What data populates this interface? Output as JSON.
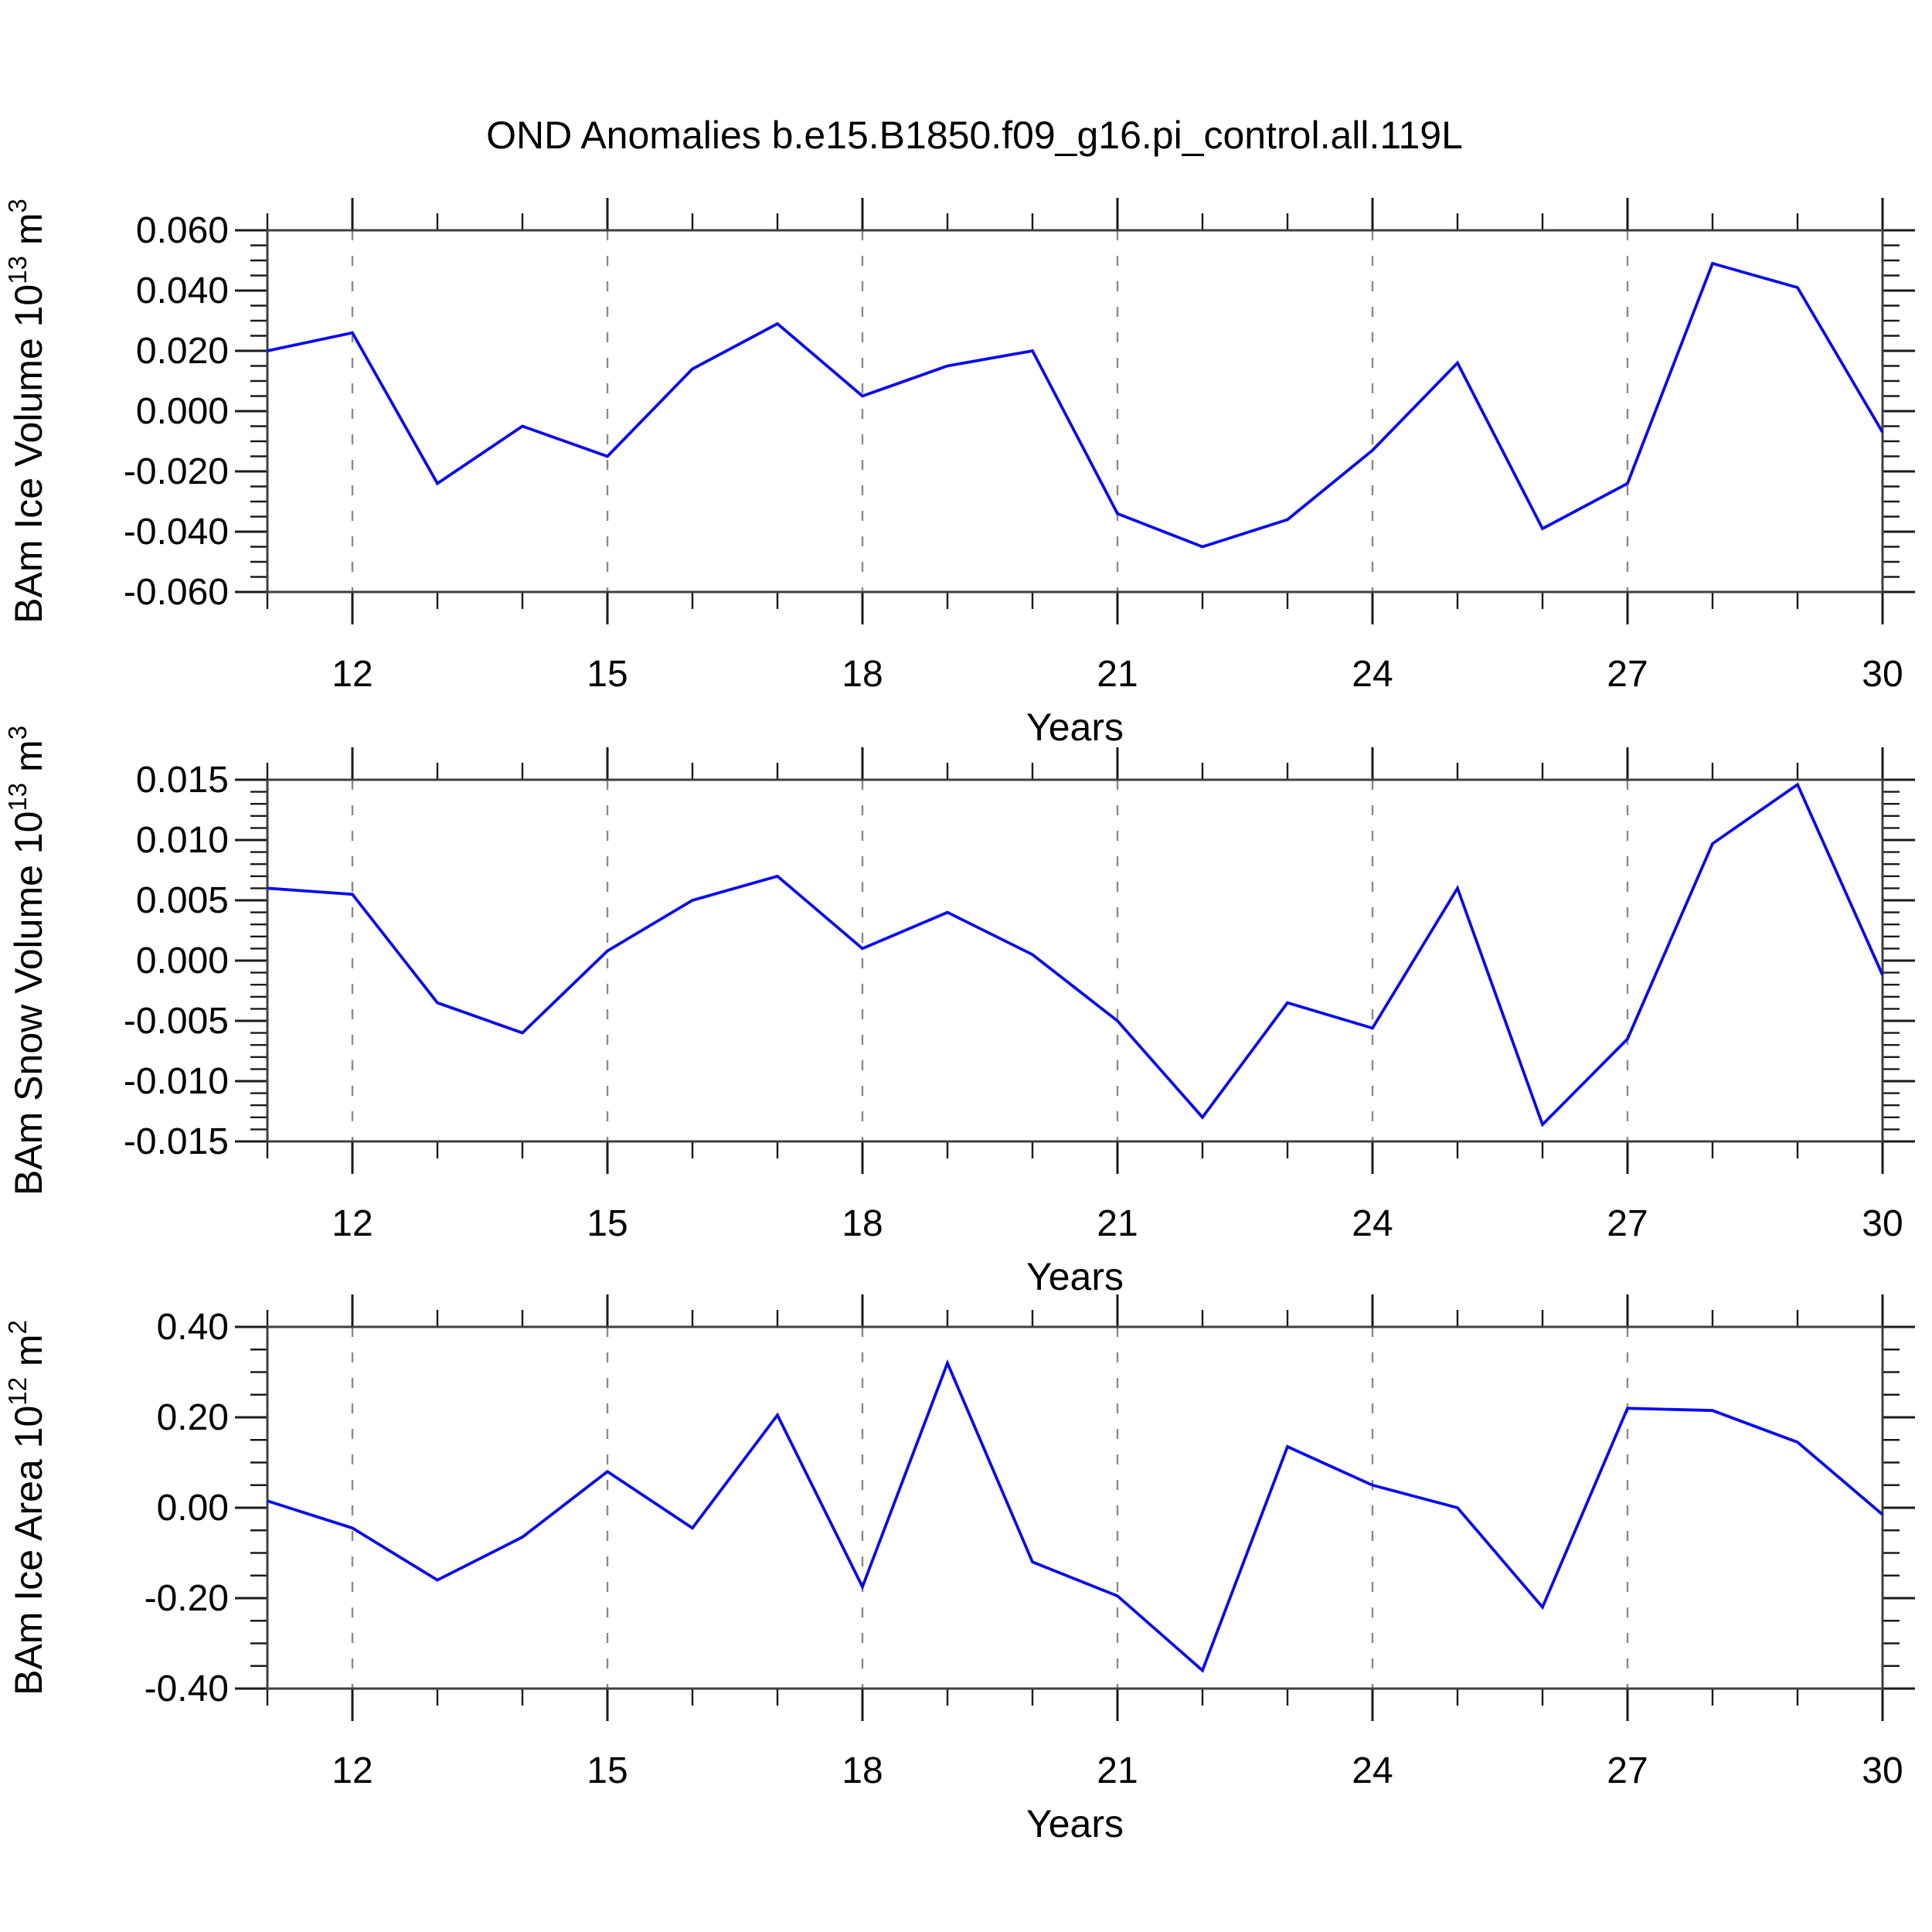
{
  "title": "OND Anomalies b.e15.B1850.f09_g16.pi_control.all.119L",
  "styles": {
    "line_color": "#0a0aee",
    "grid_color": "#8a8a8a",
    "frame_color": "#3f3f3f",
    "tick_color": "#1a1a1a",
    "text_color": "#000000",
    "background": "#ffffff",
    "grid_dash": "13 20"
  },
  "x_axis": {
    "label": "Years",
    "xlim": [
      11,
      30
    ],
    "major_ticks": [
      12,
      15,
      18,
      21,
      24,
      27,
      30
    ],
    "tick_labels": [
      "12",
      "15",
      "18",
      "21",
      "24",
      "27",
      "30"
    ],
    "minor_step": 1,
    "gridlines": [
      12,
      15,
      18,
      21,
      24,
      27
    ]
  },
  "chart_data": [
    {
      "type": "line",
      "title": "",
      "ylabel": "BAm Ice Volume 10^13 m^3",
      "xlabel": "Years",
      "x": [
        11,
        12,
        13,
        14,
        15,
        16,
        17,
        18,
        19,
        20,
        21,
        22,
        23,
        24,
        25,
        26,
        27,
        28,
        29,
        30
      ],
      "values": [
        0.02,
        0.026,
        -0.024,
        -0.005,
        -0.015,
        0.014,
        0.029,
        0.005,
        0.015,
        0.02,
        -0.034,
        -0.045,
        -0.036,
        -0.013,
        0.016,
        -0.039,
        -0.024,
        0.049,
        0.041,
        -0.007
      ],
      "ylim": [
        -0.06,
        0.06
      ],
      "y_major_step": 0.02,
      "y_minor_step": 0.005,
      "y_tick_labels": [
        "0.060",
        "0.040",
        "0.020",
        "0.000",
        "-0.020",
        "-0.040",
        "-0.060"
      ],
      "grid": "x-dashed",
      "legend": "none"
    },
    {
      "type": "line",
      "title": "",
      "ylabel": "BAm Snow Volume 10^13 m^3",
      "xlabel": "Years",
      "x": [
        11,
        12,
        13,
        14,
        15,
        16,
        17,
        18,
        19,
        20,
        21,
        22,
        23,
        24,
        25,
        26,
        27,
        28,
        29,
        30
      ],
      "values": [
        0.006,
        0.0055,
        -0.0035,
        -0.006,
        0.0008,
        0.005,
        0.007,
        0.001,
        0.004,
        0.0005,
        -0.005,
        -0.013,
        -0.0035,
        -0.0056,
        0.006,
        -0.0136,
        -0.0065,
        0.0097,
        0.0146,
        -0.0012
      ],
      "ylim": [
        -0.015,
        0.015
      ],
      "y_major_step": 0.005,
      "y_minor_step": 0.001,
      "y_tick_labels": [
        "0.015",
        "0.010",
        "0.005",
        "0.000",
        "-0.005",
        "-0.010",
        "-0.015"
      ],
      "grid": "x-dashed",
      "legend": "none"
    },
    {
      "type": "line",
      "title": "",
      "ylabel": "BAm Ice Area 10^12 m^2",
      "xlabel": "Years",
      "x": [
        11,
        12,
        13,
        14,
        15,
        16,
        17,
        18,
        19,
        20,
        21,
        22,
        23,
        24,
        25,
        26,
        27,
        28,
        29,
        30
      ],
      "values": [
        0.015,
        -0.045,
        -0.16,
        -0.065,
        0.08,
        -0.045,
        0.205,
        -0.175,
        0.32,
        -0.12,
        -0.195,
        -0.36,
        0.135,
        0.05,
        0.0,
        -0.22,
        0.22,
        0.215,
        0.145,
        -0.015
      ],
      "ylim": [
        -0.4,
        0.4
      ],
      "y_major_step": 0.2,
      "y_minor_step": 0.05,
      "y_tick_labels": [
        "0.40",
        "0.20",
        "0.00",
        "-0.20",
        "-0.40"
      ],
      "grid": "x-dashed",
      "legend": "none"
    }
  ]
}
